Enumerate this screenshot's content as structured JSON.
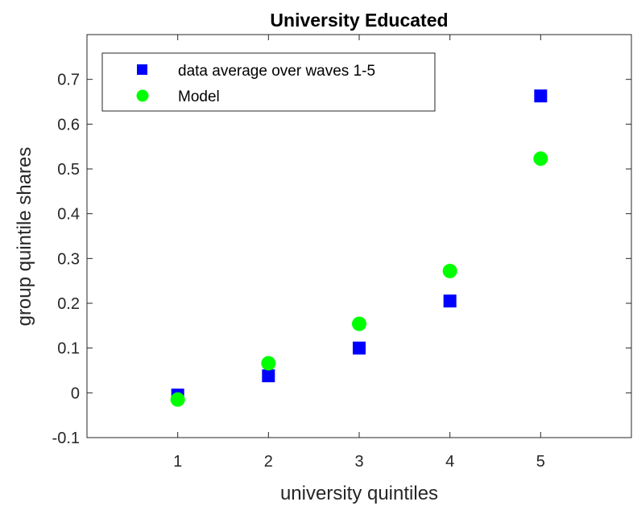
{
  "chart_data": {
    "type": "scatter",
    "title": "University Educated",
    "xlabel": "university quintiles",
    "ylabel": "group quintile shares",
    "xlim": [
      0,
      6
    ],
    "ylim": [
      -0.1,
      0.8
    ],
    "xticks": [
      1,
      2,
      3,
      4,
      5
    ],
    "xtick_labels": [
      "1",
      "2",
      "3",
      "4",
      "5"
    ],
    "yticks": [
      -0.1,
      0,
      0.1,
      0.2,
      0.3,
      0.4,
      0.5,
      0.6,
      0.7
    ],
    "ytick_labels": [
      "-0.1",
      "0",
      "0.1",
      "0.2",
      "0.3",
      "0.4",
      "0.5",
      "0.6",
      "0.7"
    ],
    "grid": false,
    "legend_position": "top-left",
    "series": [
      {
        "name": "data average over waves 1-5",
        "marker": "square",
        "color": "#0000FF",
        "x": [
          1,
          2,
          3,
          4,
          5
        ],
        "y": [
          -0.005,
          0.038,
          0.1,
          0.205,
          0.663
        ]
      },
      {
        "name": "Model",
        "marker": "circle",
        "color": "#00FF00",
        "x": [
          1,
          2,
          3,
          4,
          5
        ],
        "y": [
          -0.015,
          0.066,
          0.154,
          0.272,
          0.523
        ]
      }
    ]
  }
}
